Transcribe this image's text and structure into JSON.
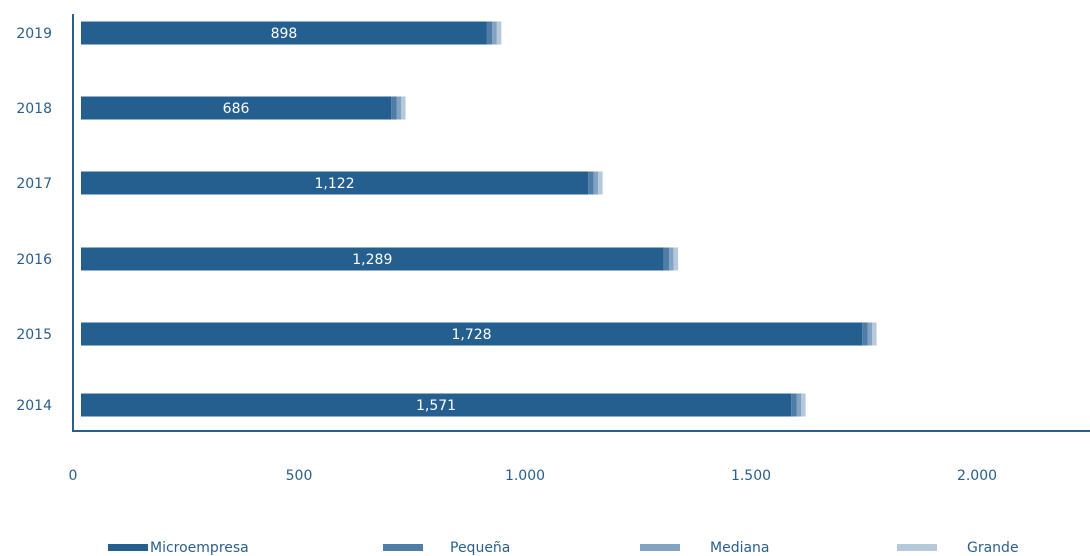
{
  "chart_data": {
    "type": "stacked-bar-horizontal",
    "categories": [
      "2019",
      "2018",
      "2017",
      "2016",
      "2015",
      "2014"
    ],
    "series": [
      {
        "name": "Microempresa",
        "color": "#245f8f",
        "values": [
          898,
          686,
          1122,
          1289,
          1728,
          1571
        ],
        "value_labels": [
          "898",
          "686",
          "1,122",
          "1,289",
          "1,728",
          "1,571"
        ]
      },
      {
        "name": "Pequeña",
        "color": "#4f7da6",
        "values": [
          12,
          12,
          12,
          12,
          12,
          12
        ]
      },
      {
        "name": "Mediana",
        "color": "#84a3c1",
        "values": [
          10,
          10,
          10,
          10,
          10,
          10
        ]
      },
      {
        "name": "Grande",
        "color": "#b5c8dc",
        "values": [
          10,
          10,
          10,
          10,
          10,
          10
        ]
      }
    ],
    "xlim": [
      0,
      2250
    ],
    "xticks": [
      0,
      500,
      {
        "value": 1000,
        "label": "1.000"
      },
      {
        "value": 1500,
        "label": "1.500"
      },
      {
        "value": 2000,
        "label": "2.000"
      }
    ],
    "grid": false,
    "legend": "bottom"
  }
}
